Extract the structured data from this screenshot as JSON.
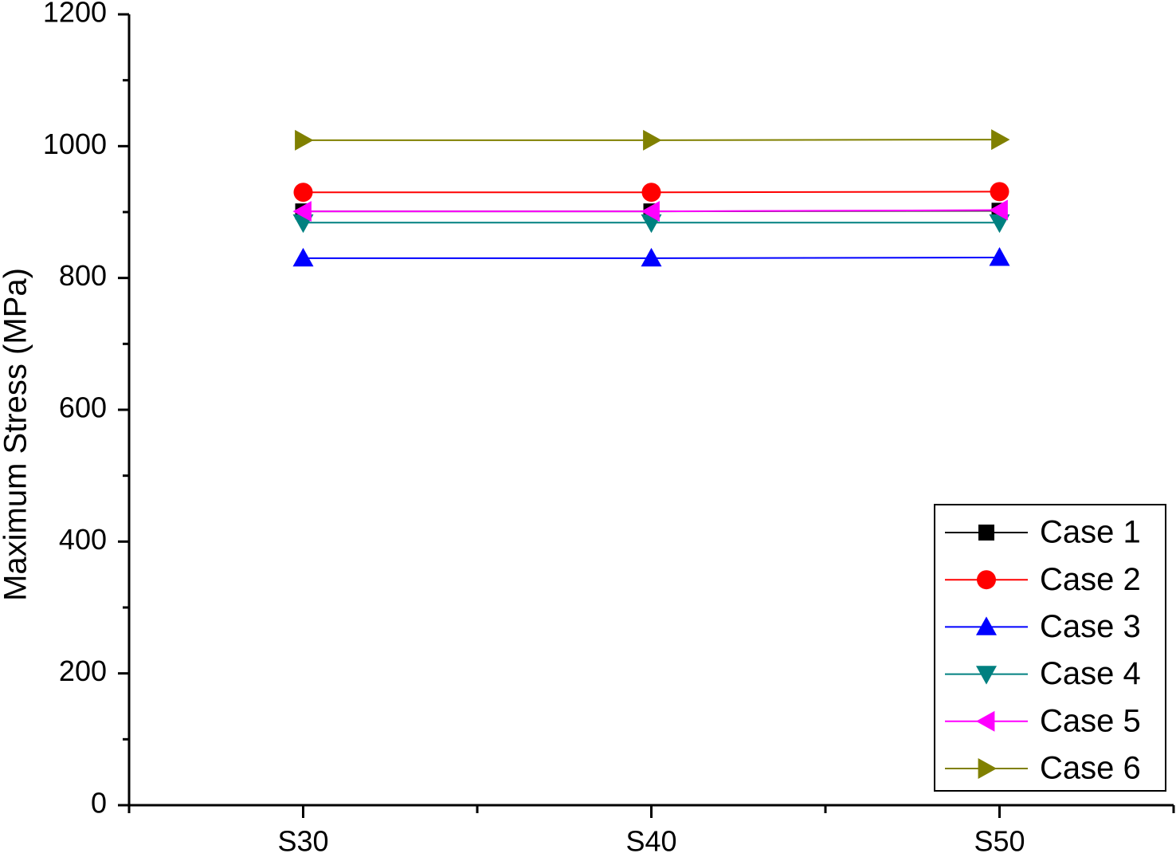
{
  "chart_data": {
    "type": "line",
    "y_label": "Maximum Stress (MPa)",
    "categories": [
      "S30",
      "S40",
      "S50"
    ],
    "series": [
      {
        "name": "Case 1",
        "color": "#000000",
        "marker": "square",
        "values": [
          901,
          901,
          902
        ]
      },
      {
        "name": "Case 2",
        "color": "#ff0000",
        "marker": "circle",
        "values": [
          930,
          930,
          931
        ]
      },
      {
        "name": "Case 3",
        "color": "#0000ff",
        "marker": "triangle-up",
        "values": [
          830,
          830,
          831
        ]
      },
      {
        "name": "Case 4",
        "color": "#008080",
        "marker": "triangle-down",
        "values": [
          884,
          884,
          884
        ]
      },
      {
        "name": "Case 5",
        "color": "#ff00ff",
        "marker": "triangle-left",
        "values": [
          901,
          901,
          903
        ]
      },
      {
        "name": "Case 6",
        "color": "#808000",
        "marker": "triangle-right",
        "values": [
          1009,
          1009,
          1010
        ]
      }
    ],
    "ylim": [
      0,
      1200
    ],
    "yticks": [
      0,
      200,
      400,
      600,
      800,
      1000,
      1200
    ],
    "legend": "lower right",
    "grid": false
  }
}
